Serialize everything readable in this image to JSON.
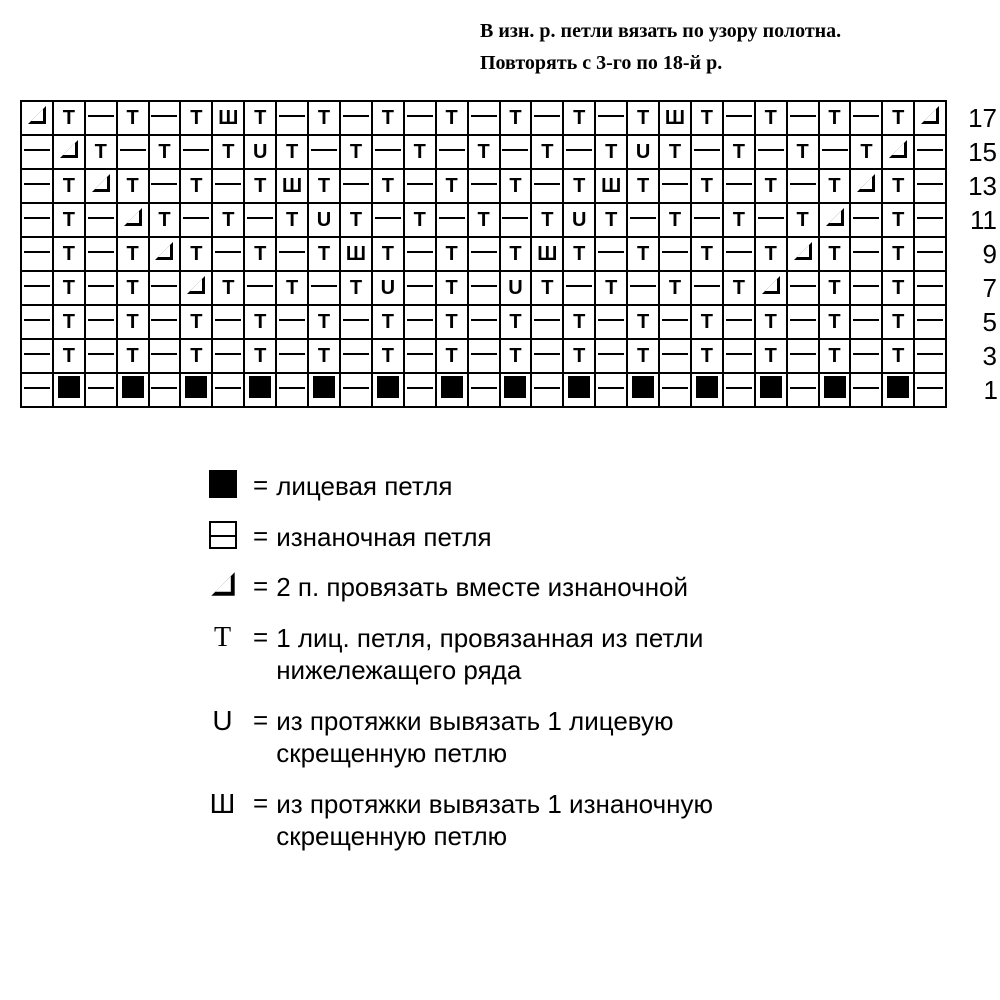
{
  "notes": {
    "line1": "В изн. р. петли вязать по узору полотна.",
    "line2": "Повторять с 3-го по 18-й р."
  },
  "chart": {
    "cell_size": 30,
    "border_color": "#000000",
    "background": "#ffffff",
    "cols": 29,
    "row_labels": [
      "17",
      "15",
      "13",
      "11",
      "9",
      "7",
      "5",
      "3",
      "1"
    ],
    "symbol_map": {
      "F": "filled-square",
      "P": "purl-dash",
      "T": "T",
      "U": "U",
      "W": "W-glyph",
      "A": "triangle"
    },
    "rows": [
      [
        "A",
        "T",
        "P",
        "T",
        "P",
        "T",
        "W",
        "T",
        "P",
        "T",
        "P",
        "T",
        "P",
        "T",
        "P",
        "T",
        "P",
        "T",
        "P",
        "T",
        "W",
        "T",
        "P",
        "T",
        "P",
        "T",
        "P",
        "T",
        "A"
      ],
      [
        "P",
        "A",
        "T",
        "P",
        "T",
        "P",
        "T",
        "U",
        "T",
        "P",
        "T",
        "P",
        "T",
        "P",
        "T",
        "P",
        "T",
        "P",
        "T",
        "U",
        "T",
        "P",
        "T",
        "P",
        "T",
        "P",
        "T",
        "A",
        "P"
      ],
      [
        "P",
        "T",
        "A",
        "T",
        "P",
        "T",
        "P",
        "T",
        "W",
        "T",
        "P",
        "T",
        "P",
        "T",
        "P",
        "T",
        "P",
        "T",
        "W",
        "T",
        "P",
        "T",
        "P",
        "T",
        "P",
        "T",
        "A",
        "T",
        "P"
      ],
      [
        "P",
        "T",
        "P",
        "A",
        "T",
        "P",
        "T",
        "P",
        "T",
        "U",
        "T",
        "P",
        "T",
        "P",
        "T",
        "P",
        "T",
        "U",
        "T",
        "P",
        "T",
        "P",
        "T",
        "P",
        "T",
        "A",
        "P",
        "T",
        "P"
      ],
      [
        "P",
        "T",
        "P",
        "T",
        "A",
        "T",
        "P",
        "T",
        "P",
        "T",
        "W",
        "T",
        "P",
        "T",
        "P",
        "T",
        "W",
        "T",
        "P",
        "T",
        "P",
        "T",
        "P",
        "T",
        "A",
        "T",
        "P",
        "T",
        "P"
      ],
      [
        "P",
        "T",
        "P",
        "T",
        "P",
        "A",
        "T",
        "P",
        "T",
        "P",
        "T",
        "U",
        "P",
        "T",
        "P",
        "U",
        "T",
        "P",
        "T",
        "P",
        "T",
        "P",
        "T",
        "A",
        "P",
        "T",
        "P",
        "T",
        "P"
      ],
      [
        "P",
        "T",
        "P",
        "T",
        "P",
        "T",
        "P",
        "T",
        "P",
        "T",
        "P",
        "T",
        "P",
        "T",
        "P",
        "T",
        "P",
        "T",
        "P",
        "T",
        "P",
        "T",
        "P",
        "T",
        "P",
        "T",
        "P",
        "T",
        "P"
      ],
      [
        "P",
        "T",
        "P",
        "T",
        "P",
        "T",
        "P",
        "T",
        "P",
        "T",
        "P",
        "T",
        "P",
        "T",
        "P",
        "T",
        "P",
        "T",
        "P",
        "T",
        "P",
        "T",
        "P",
        "T",
        "P",
        "T",
        "P",
        "T",
        "P"
      ],
      [
        "P",
        "F",
        "P",
        "F",
        "P",
        "F",
        "P",
        "F",
        "P",
        "F",
        "P",
        "F",
        "P",
        "F",
        "P",
        "F",
        "P",
        "F",
        "P",
        "F",
        "P",
        "F",
        "P",
        "F",
        "P",
        "F",
        "P",
        "F",
        "P"
      ]
    ]
  },
  "legend": [
    {
      "sym": "F",
      "text": "лицевая петля"
    },
    {
      "sym": "P",
      "text": "изнаночная петля"
    },
    {
      "sym": "A",
      "text": "2 п. провязать вместе изна­ночной"
    },
    {
      "sym": "T",
      "text": "1 лиц. петля, провязанная из петли нижележащего ряда"
    },
    {
      "sym": "U",
      "text": "из протяжки вывязать 1 лицевую скрещенную петлю"
    },
    {
      "sym": "W",
      "text": "из протяжки вывязать 1 изна­ночную скрещенную петлю"
    }
  ],
  "glyphs": {
    "T": "T",
    "U": "U",
    "W": "Ш",
    "A": "◿"
  }
}
